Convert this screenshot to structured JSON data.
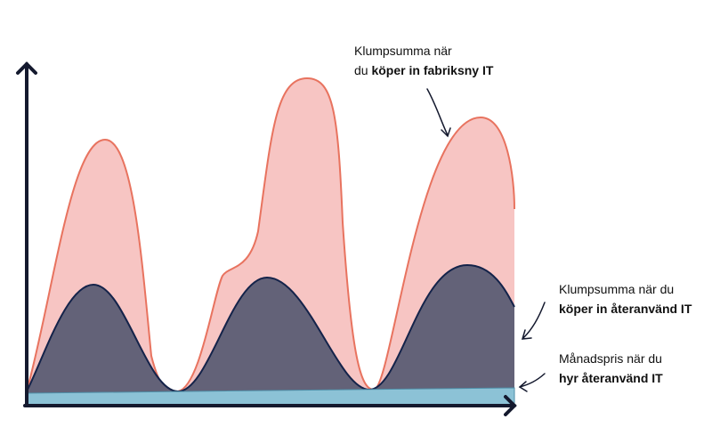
{
  "labels": [
    {
      "line1": "Klumpsumma när",
      "line2_plain": "du ",
      "line2_bold": "köper in fabriksny IT"
    },
    {
      "line1": "Klumpsumma när du",
      "line2_bold": "köper in återanvänd IT"
    },
    {
      "line1": "Månadspris när du",
      "line2_bold": "hyr återanvänd IT"
    }
  ]
}
